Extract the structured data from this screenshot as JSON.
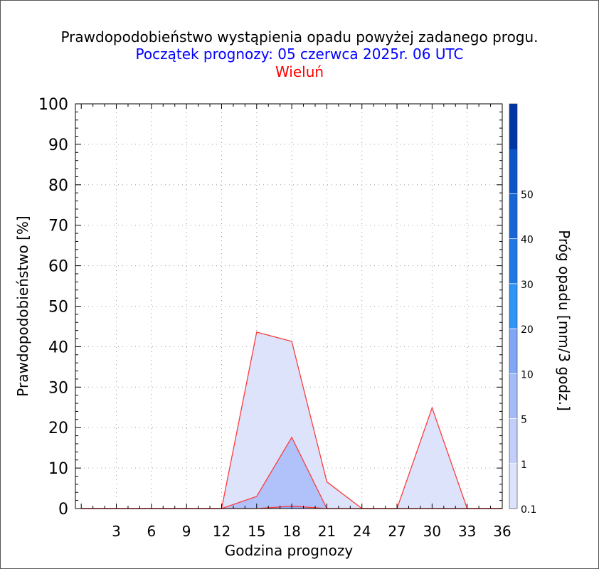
{
  "title": "Prawdopodobieństwo wystąpienia opadu powyżej zadanego progu.",
  "subtitle": "Początek prognozy: 05 czerwca 2025r. 06 UTC",
  "station": "Wieluń",
  "chart_data": {
    "type": "area",
    "xlabel": "Godzina prognozy",
    "ylabel": "Prawdopodobieństwo [%]",
    "xlim": [
      -0.5,
      36
    ],
    "ylim": [
      0,
      100
    ],
    "x_ticks": [
      3,
      6,
      9,
      12,
      15,
      18,
      21,
      24,
      27,
      30,
      33,
      36
    ],
    "y_ticks": [
      0,
      10,
      20,
      30,
      40,
      50,
      60,
      70,
      80,
      90,
      100
    ],
    "grid": true,
    "x": [
      0,
      3,
      6,
      9,
      12,
      15,
      18,
      21,
      24,
      27,
      30,
      33,
      36
    ],
    "series": [
      {
        "threshold": "0.1",
        "color": "#dde3fb",
        "values": [
          0,
          0,
          0,
          0,
          0,
          43.6,
          41.3,
          6.6,
          0,
          0,
          24.9,
          0,
          0
        ]
      },
      {
        "threshold": "1",
        "color": "#b1c2fa",
        "values": [
          0,
          0,
          0,
          0,
          0,
          3.0,
          17.6,
          0,
          0,
          0,
          0,
          0,
          0
        ]
      },
      {
        "threshold": "5",
        "color": "#8ea9f7",
        "values": [
          0,
          0,
          0,
          0,
          0,
          0,
          0.6,
          0,
          0,
          0,
          0,
          0,
          0
        ]
      }
    ],
    "line_color": "#ff3b3b",
    "colorbar": {
      "label": "Próg opadu [mm/3 godz.]",
      "labels": [
        "0.1",
        "1",
        "5",
        "10",
        "20",
        "30",
        "40",
        "50"
      ],
      "colors": [
        "#dde3fb",
        "#c2cffa",
        "#a5bbf8",
        "#80a6f5",
        "#2c95f5",
        "#1f78e4",
        "#1766d6",
        "#0b55c9",
        "#0035a6"
      ]
    }
  }
}
